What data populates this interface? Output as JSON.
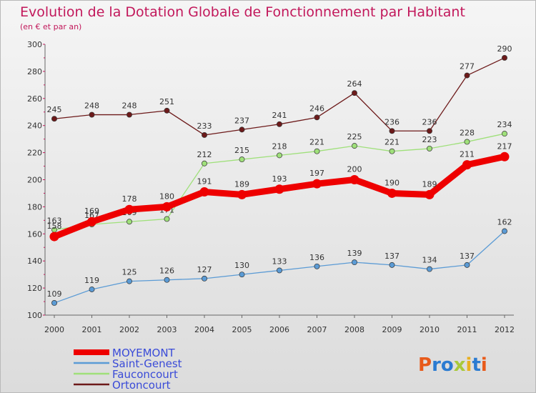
{
  "chart_data": {
    "type": "line",
    "title": "Evolution de la Dotation Globale de Fonctionnement par Habitant",
    "subtitle": "(en € et par an)",
    "x": [
      2000,
      2001,
      2002,
      2003,
      2004,
      2005,
      2006,
      2007,
      2008,
      2009,
      2010,
      2011,
      2012
    ],
    "ylim": [
      100,
      300
    ],
    "yticks": [
      100,
      120,
      140,
      160,
      180,
      200,
      220,
      240,
      260,
      280,
      300
    ],
    "grid": false,
    "legend_position": "bottom-left",
    "series": [
      {
        "name": "MOYEMONT",
        "color": "#ee0000",
        "values": [
          158,
          169,
          178,
          180,
          191,
          189,
          193,
          197,
          200,
          190,
          189,
          211,
          217
        ]
      },
      {
        "name": "Saint-Genest",
        "color": "#5b9bd5",
        "values": [
          109,
          119,
          125,
          126,
          127,
          130,
          133,
          136,
          139,
          137,
          134,
          137,
          162
        ]
      },
      {
        "name": "Fauconcourt",
        "color": "#9fe07a",
        "values": [
          163,
          167,
          169,
          171,
          212,
          215,
          218,
          221,
          225,
          221,
          223,
          228,
          234
        ]
      },
      {
        "name": "Ortoncourt",
        "color": "#6d1a1a",
        "values": [
          245,
          248,
          248,
          251,
          233,
          237,
          241,
          246,
          264,
          236,
          236,
          277,
          290
        ]
      }
    ]
  },
  "brand": {
    "logo_text": "Proxiti"
  }
}
